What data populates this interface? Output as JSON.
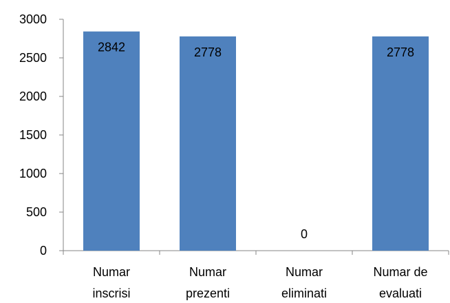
{
  "chart_data": {
    "type": "bar",
    "categories": [
      [
        "Numar",
        "inscrisi"
      ],
      [
        "Numar",
        "prezenti"
      ],
      [
        "Numar",
        "eliminati"
      ],
      [
        "Numar de",
        "evaluati"
      ]
    ],
    "values": [
      2842,
      2778,
      0,
      2778
    ],
    "data_labels": [
      "2842",
      "2778",
      "0",
      "2778"
    ],
    "ylim": [
      0,
      3000
    ],
    "yticks": [
      "0",
      "500",
      "1000",
      "1500",
      "2000",
      "2500",
      "3000"
    ],
    "ytick_values": [
      0,
      500,
      1000,
      1500,
      2000,
      2500,
      3000
    ],
    "grid": false,
    "legend": "none",
    "colors": {
      "bar": "#4f81bd",
      "axis": "#868686",
      "text": "#000000"
    }
  }
}
